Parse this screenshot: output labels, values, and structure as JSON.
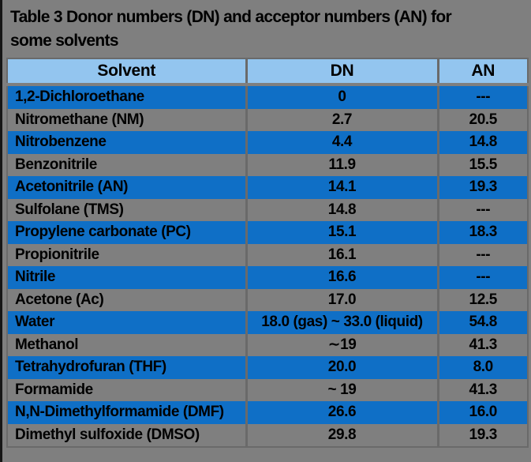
{
  "title": {
    "line1": "Table 3 Donor numbers (DN) and acceptor numbers (AN) for",
    "line2": "some solvents",
    "full": "Table 3 Donor numbers (DN) and acceptor numbers (AN) for some solvents"
  },
  "table": {
    "columns": [
      "Solvent",
      "DN",
      "AN"
    ],
    "rows": [
      {
        "solvent": "1,2-Dichloroethane",
        "dn": "0",
        "an": "---"
      },
      {
        "solvent": "Nitromethane (NM)",
        "dn": "2.7",
        "an": "20.5"
      },
      {
        "solvent": "Nitrobenzene",
        "dn": "4.4",
        "an": "14.8"
      },
      {
        "solvent": "Benzonitrile",
        "dn": "11.9",
        "an": "15.5"
      },
      {
        "solvent": "Acetonitrile (AN)",
        "dn": "14.1",
        "an": "19.3"
      },
      {
        "solvent": "Sulfolane (TMS)",
        "dn": "14.8",
        "an": "---"
      },
      {
        "solvent": "Propylene carbonate  (PC)",
        "dn": "15.1",
        "an": "18.3"
      },
      {
        "solvent": "Propionitrile",
        "dn": "16.1",
        "an": "---"
      },
      {
        "solvent": "Nitrile",
        "dn": "16.6",
        "an": "---"
      },
      {
        "solvent": "Acetone (Ac)",
        "dn": "17.0",
        "an": "12.5"
      },
      {
        "solvent": "Water",
        "dn": "18.0 (gas) ~ 33.0 (liquid)",
        "an": "54.8"
      },
      {
        "solvent": "Methanol",
        "dn": "∼19",
        "an": "41.3"
      },
      {
        "solvent": "Tetrahydrofuran (THF)",
        "dn": "20.0",
        "an": "8.0"
      },
      {
        "solvent": "Formamide",
        "dn": "~ 19",
        "an": "41.3"
      },
      {
        "solvent": "N,N-Dimethylformamide (DMF)",
        "dn": "26.6",
        "an": "16.0"
      },
      {
        "solvent": "Dimethyl sulfoxide (DMSO)",
        "dn": "29.8",
        "an": "19.3"
      }
    ]
  },
  "colors": {
    "bg_gray": "#7f7f7f",
    "header_blue": "#93c5ef",
    "row_blue": "#0f6fc6",
    "grid_gray": "#6a6a6a",
    "edge_black": "#161616",
    "text_black": "#000000"
  }
}
